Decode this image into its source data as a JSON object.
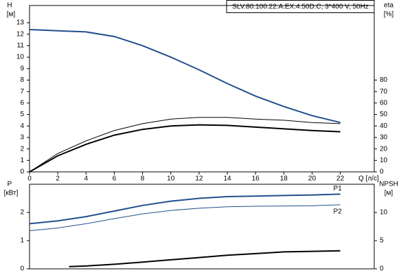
{
  "chart_data": [
    {
      "type": "line",
      "title": "SLV.80.100.22.A.EX.4.50D.C, 3*400 V, 50Hz",
      "xlabel": "Q [л/с]",
      "ylabel": "H",
      "yunit": "[м]",
      "y2label": "eta",
      "y2unit": "[%]",
      "x": [
        0,
        2,
        4,
        6,
        8,
        10,
        12,
        14,
        16,
        18,
        20,
        22
      ],
      "xlim": [
        0,
        24.4
      ],
      "xticks": [
        0,
        2,
        4,
        6,
        8,
        10,
        12,
        14,
        16,
        18,
        20,
        22
      ],
      "ylim": [
        0,
        14.5
      ],
      "yticks": [
        0,
        1,
        2,
        3,
        4,
        5,
        6,
        7,
        8,
        9,
        10,
        11,
        12,
        13
      ],
      "y2lim": [
        0,
        145
      ],
      "y2ticks": [
        0,
        10,
        20,
        30,
        40,
        50,
        60,
        70,
        80
      ],
      "series": [
        {
          "color": "#1f4e8c",
          "width": 2,
          "values": [
            12.4,
            12.3,
            12.2,
            11.8,
            11.0,
            10.0,
            8.9,
            7.7,
            6.6,
            5.7,
            4.9,
            4.3
          ]
        },
        {
          "color": "#000000",
          "width": 1,
          "axis": "y2",
          "values": [
            0,
            16,
            27,
            36,
            42,
            46,
            47.5,
            47.5,
            46,
            45,
            43,
            42
          ]
        },
        {
          "color": "#000000",
          "width": 2,
          "axis": "y2",
          "values": [
            0,
            14,
            24,
            32,
            37,
            40,
            41,
            40.5,
            39,
            37.5,
            36,
            35
          ]
        }
      ]
    },
    {
      "type": "line",
      "ylabel": "P",
      "yunit": "[кВт]",
      "y2label": "NPSH",
      "y2unit": "[м]",
      "x": [
        0,
        2,
        4,
        6,
        8,
        10,
        12,
        14,
        16,
        18,
        20,
        22
      ],
      "xlim": [
        0,
        24.4
      ],
      "ylim": [
        0,
        3
      ],
      "yticks": [
        0,
        1,
        2
      ],
      "y2lim": [
        0,
        15
      ],
      "y2ticks": [
        0,
        5,
        10
      ],
      "series": [
        {
          "name": "P1",
          "color": "#1f4e8c",
          "width": 2,
          "values": [
            1.6,
            1.7,
            1.85,
            2.05,
            2.25,
            2.4,
            2.5,
            2.56,
            2.58,
            2.6,
            2.62,
            2.65
          ]
        },
        {
          "name": "P2",
          "color": "#1f4e8c",
          "width": 1,
          "values": [
            1.35,
            1.45,
            1.6,
            1.78,
            1.95,
            2.07,
            2.15,
            2.2,
            2.22,
            2.23,
            2.24,
            2.27
          ]
        },
        {
          "color": "#000000",
          "width": 2,
          "axis": "y2",
          "x": [
            2.8,
            4,
            6,
            8,
            10,
            12,
            14,
            16,
            18,
            20,
            22
          ],
          "values": [
            0.4,
            0.5,
            0.8,
            1.2,
            1.6,
            2.0,
            2.4,
            2.7,
            3.0,
            3.1,
            3.2
          ]
        }
      ]
    }
  ]
}
